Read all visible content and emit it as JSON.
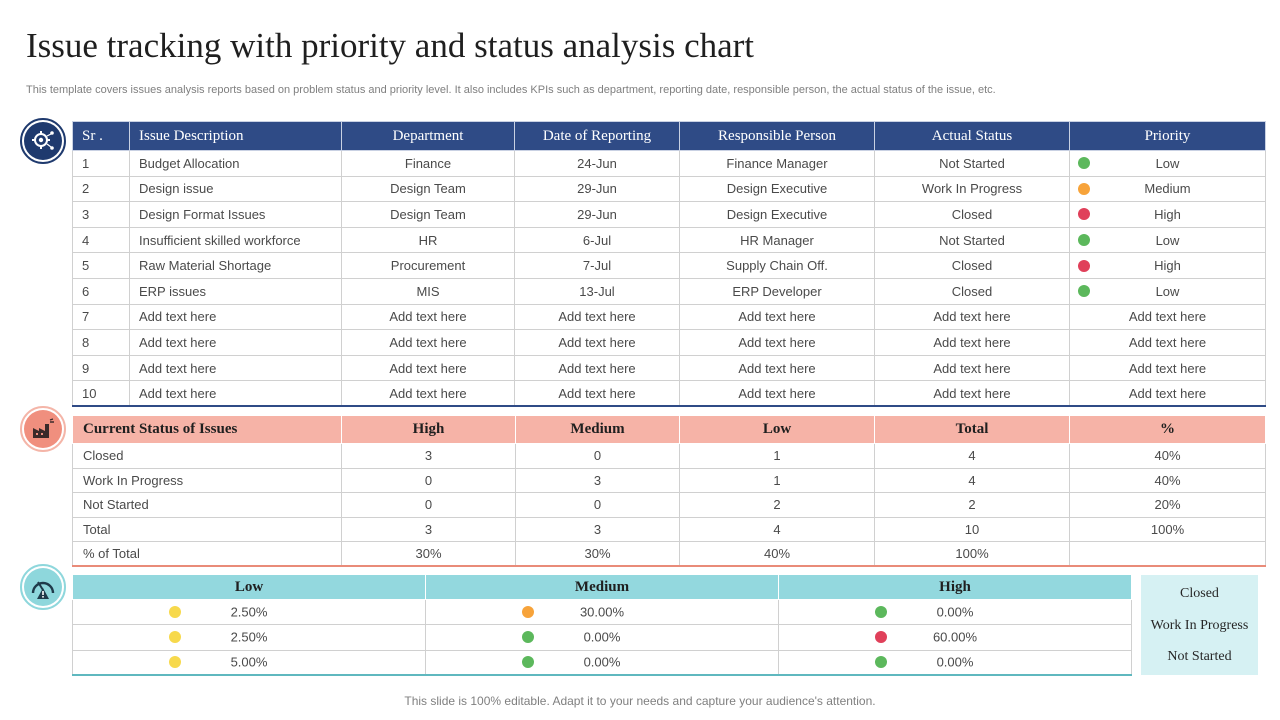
{
  "title": "Issue tracking with priority and status analysis chart",
  "subtitle": "This template covers issues analysis reports based on problem status and priority level. It also includes KPIs such as department, reporting date, responsible person, the actual status of the issue, etc.",
  "footer": "This slide is 100% editable. Adapt it to your needs and capture your audience's attention.",
  "colors": {
    "green": "#5cb85c",
    "orange": "#f7a33a",
    "red": "#e0405a",
    "yellow": "#f7d94c"
  },
  "issues": {
    "headers": [
      "Sr .",
      "Issue Description",
      "Department",
      "Date of Reporting",
      "Responsible Person",
      "Actual Status",
      "Priority"
    ],
    "rows": [
      {
        "sr": "1",
        "description": "Budget Allocation",
        "department": "Finance",
        "date": "24-Jun",
        "person": "Finance Manager",
        "status": "Not Started",
        "priority": "Low",
        "dot": "green"
      },
      {
        "sr": "2",
        "description": "Design issue",
        "department": "Design Team",
        "date": "29-Jun",
        "person": "Design Executive",
        "status": "Work In Progress",
        "priority": "Medium",
        "dot": "orange"
      },
      {
        "sr": "3",
        "description": "Design Format Issues",
        "department": "Design Team",
        "date": "29-Jun",
        "person": "Design Executive",
        "status": "Closed",
        "priority": "High",
        "dot": "red"
      },
      {
        "sr": "4",
        "description": "Insufficient  skilled workforce",
        "department": "HR",
        "date": "6-Jul",
        "person": "HR Manager",
        "status": "Not Started",
        "priority": "Low",
        "dot": "green"
      },
      {
        "sr": "5",
        "description": "Raw Material Shortage",
        "department": "Procurement",
        "date": "7-Jul",
        "person": "Supply Chain Off.",
        "status": "Closed",
        "priority": "High",
        "dot": "red"
      },
      {
        "sr": "6",
        "description": "ERP issues",
        "department": "MIS",
        "date": "13-Jul",
        "person": "ERP Developer",
        "status": "Closed",
        "priority": "Low",
        "dot": "green"
      },
      {
        "sr": "7",
        "description": "Add text here",
        "department": "Add text here",
        "date": "Add text here",
        "person": "Add text here",
        "status": "Add text here",
        "priority": "Add text here",
        "dot": ""
      },
      {
        "sr": "8",
        "description": "Add text here",
        "department": "Add text here",
        "date": "Add text here",
        "person": "Add text here",
        "status": "Add text here",
        "priority": "Add text here",
        "dot": ""
      },
      {
        "sr": "9",
        "description": "Add text here",
        "department": "Add text here",
        "date": "Add text here",
        "person": "Add text here",
        "status": "Add text here",
        "priority": "Add text here",
        "dot": ""
      },
      {
        "sr": "10",
        "description": "Add text here",
        "department": "Add text here",
        "date": "Add text here",
        "person": "Add text here",
        "status": "Add text here",
        "priority": "Add text here",
        "dot": ""
      }
    ]
  },
  "status_summary": {
    "headers": [
      "Current  Status of Issues",
      "High",
      "Medium",
      "Low",
      "Total",
      "%"
    ],
    "rows": [
      [
        "Closed",
        "3",
        "0",
        "1",
        "4",
        "40%"
      ],
      [
        "Work In Progress",
        "0",
        "3",
        "1",
        "4",
        "40%"
      ],
      [
        "Not Started",
        "0",
        "0",
        "2",
        "2",
        "20%"
      ],
      [
        "Total",
        "3",
        "3",
        "4",
        "10",
        "100%"
      ],
      [
        "% of Total",
        "30%",
        "30%",
        "40%",
        "100%",
        ""
      ]
    ]
  },
  "percent_table": {
    "headers": [
      "Low",
      "Medium",
      "High"
    ],
    "rows": [
      [
        {
          "value": "2.50%",
          "dot": "yellow"
        },
        {
          "value": "30.00%",
          "dot": "orange"
        },
        {
          "value": "0.00%",
          "dot": "green"
        }
      ],
      [
        {
          "value": "2.50%",
          "dot": "yellow"
        },
        {
          "value": "0.00%",
          "dot": "green"
        },
        {
          "value": "60.00%",
          "dot": "red"
        }
      ],
      [
        {
          "value": "5.00%",
          "dot": "yellow"
        },
        {
          "value": "0.00%",
          "dot": "green"
        },
        {
          "value": "0.00%",
          "dot": "green"
        }
      ]
    ],
    "row_labels": [
      "Closed",
      "Work In Progress",
      "Not Started"
    ]
  }
}
